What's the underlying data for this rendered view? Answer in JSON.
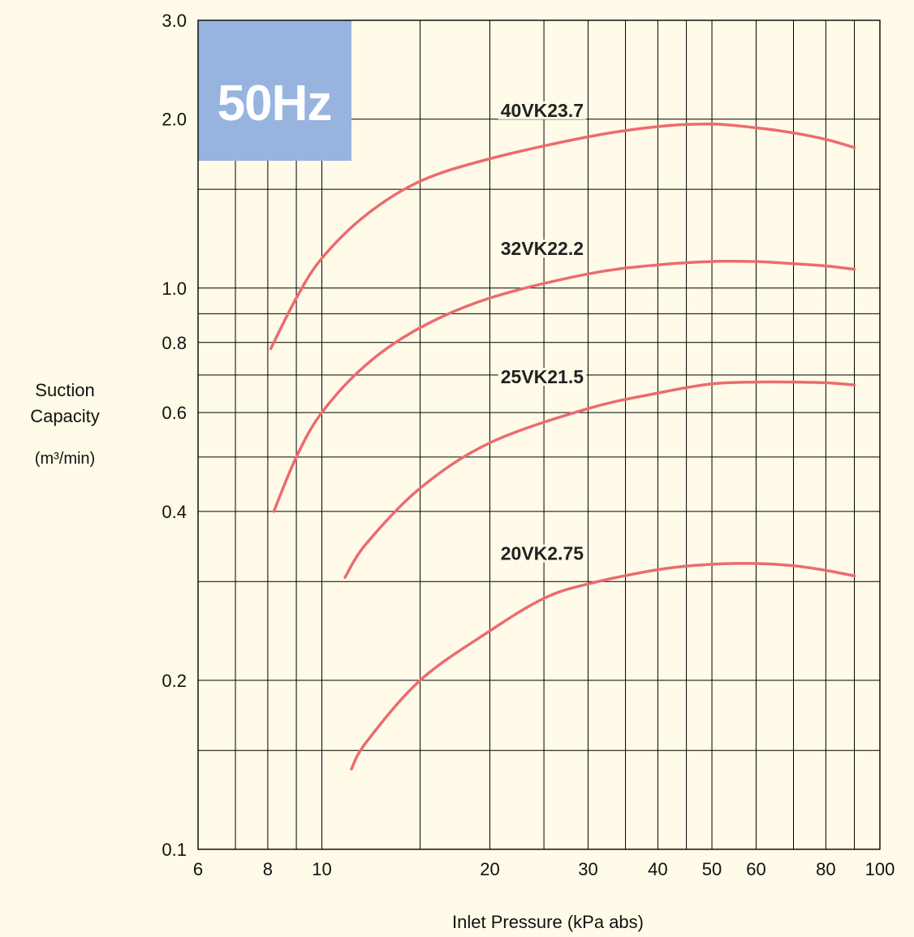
{
  "badge": {
    "text": "50Hz",
    "color": "#97b4df"
  },
  "colors": {
    "background": "#fffbe8",
    "grid": "#000000",
    "curve": "#ec6b6e"
  },
  "chart_data": {
    "type": "line",
    "xlabel": "Inlet Pressure (kPa abs)",
    "ylabel_lines": [
      "Suction",
      "Capacity",
      "(m³/min)"
    ],
    "x_scale": "log",
    "y_scale": "log",
    "xlim": [
      6,
      100
    ],
    "ylim": [
      0.1,
      3.0
    ],
    "x_ticks": [
      6,
      8,
      10,
      20,
      30,
      40,
      50,
      60,
      80,
      100
    ],
    "x_tick_labels": [
      "6",
      "8",
      "10",
      "20",
      "30",
      "40",
      "50",
      "60",
      "80",
      "100"
    ],
    "x_gridlines": [
      6,
      7,
      8,
      9,
      10,
      15,
      20,
      25,
      30,
      35,
      40,
      45,
      50,
      60,
      70,
      80,
      90,
      100
    ],
    "y_ticks": [
      0.1,
      0.2,
      0.4,
      0.6,
      0.8,
      1.0,
      2.0,
      3.0
    ],
    "y_tick_labels": [
      "0.1",
      "0.2",
      "0.4",
      "0.6",
      "0.8",
      "1.0",
      "2.0",
      "3.0"
    ],
    "y_gridlines": [
      0.15,
      0.2,
      0.3,
      0.4,
      0.5,
      0.6,
      0.7,
      0.8,
      0.9,
      1.0,
      1.5,
      2.0
    ],
    "grid": true,
    "series": [
      {
        "name": "40VK23.7",
        "x": [
          8.1,
          9,
          10,
          12,
          15,
          20,
          30,
          40,
          50,
          60,
          70,
          80,
          90
        ],
        "y": [
          0.78,
          0.96,
          1.13,
          1.35,
          1.55,
          1.7,
          1.86,
          1.94,
          1.96,
          1.93,
          1.89,
          1.84,
          1.78
        ]
      },
      {
        "name": "32VK22.2",
        "x": [
          8.2,
          9,
          10,
          12,
          15,
          20,
          30,
          40,
          50,
          60,
          70,
          80,
          90
        ],
        "y": [
          0.4,
          0.5,
          0.6,
          0.73,
          0.85,
          0.96,
          1.06,
          1.1,
          1.115,
          1.115,
          1.105,
          1.095,
          1.08
        ]
      },
      {
        "name": "25VK21.5",
        "x": [
          11,
          12,
          15,
          20,
          30,
          40,
          50,
          60,
          70,
          80,
          90
        ],
        "y": [
          0.305,
          0.35,
          0.44,
          0.53,
          0.61,
          0.65,
          0.675,
          0.68,
          0.68,
          0.678,
          0.672
        ]
      },
      {
        "name": "20VK2.75",
        "x": [
          11.3,
          12,
          15,
          20,
          25,
          30,
          40,
          50,
          60,
          70,
          80,
          90
        ],
        "y": [
          0.139,
          0.155,
          0.2,
          0.245,
          0.28,
          0.297,
          0.315,
          0.322,
          0.323,
          0.32,
          0.314,
          0.307
        ]
      }
    ]
  }
}
